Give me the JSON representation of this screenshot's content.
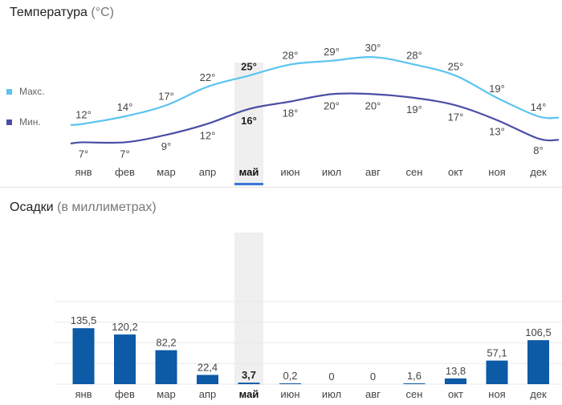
{
  "temperature": {
    "title": "Температура",
    "unit": "(°C)",
    "legend": {
      "max": "Макс.",
      "min": "Мин."
    },
    "colors": {
      "max": "#5bc4f0",
      "min": "#4a4fa5"
    },
    "selected_month_index": 4
  },
  "precipitation": {
    "title": "Осадки",
    "unit": "(в миллиметрах)",
    "bar_color": "#0d5aa7",
    "selected_month_index": 4
  },
  "chart_data": [
    {
      "type": "line",
      "title": "Температура (°C)",
      "categories": [
        "янв",
        "фев",
        "мар",
        "апр",
        "май",
        "июн",
        "июл",
        "авг",
        "сен",
        "окт",
        "ноя",
        "дек"
      ],
      "series": [
        {
          "name": "Макс.",
          "values": [
            12,
            14,
            17,
            22,
            25,
            28,
            29,
            30,
            28,
            25,
            19,
            14
          ],
          "labels": [
            "12°",
            "14°",
            "17°",
            "22°",
            "25°",
            "28°",
            "29°",
            "30°",
            "28°",
            "25°",
            "19°",
            "14°"
          ]
        },
        {
          "name": "Мин.",
          "values": [
            7,
            7,
            9,
            12,
            16,
            18,
            20,
            20,
            19,
            17,
            13,
            8
          ],
          "labels": [
            "7°",
            "7°",
            "9°",
            "12°",
            "16°",
            "18°",
            "20°",
            "20°",
            "19°",
            "17°",
            "13°",
            "8°"
          ]
        }
      ],
      "legend": "left"
    },
    {
      "type": "bar",
      "title": "Осадки (в миллиметрах)",
      "categories": [
        "янв",
        "фев",
        "мар",
        "апр",
        "май",
        "июн",
        "июл",
        "авг",
        "сен",
        "окт",
        "ноя",
        "дек"
      ],
      "values": [
        135.5,
        120.2,
        82.2,
        22.4,
        3.7,
        0.2,
        0,
        0,
        1.6,
        13.8,
        57.1,
        106.5
      ],
      "labels": [
        "135,5",
        "120,2",
        "82,2",
        "22,4",
        "3,7",
        "0,2",
        "0",
        "0",
        "1,6",
        "13,8",
        "57,1",
        "106,5"
      ],
      "ylim": [
        0,
        200
      ],
      "grid": true
    }
  ]
}
